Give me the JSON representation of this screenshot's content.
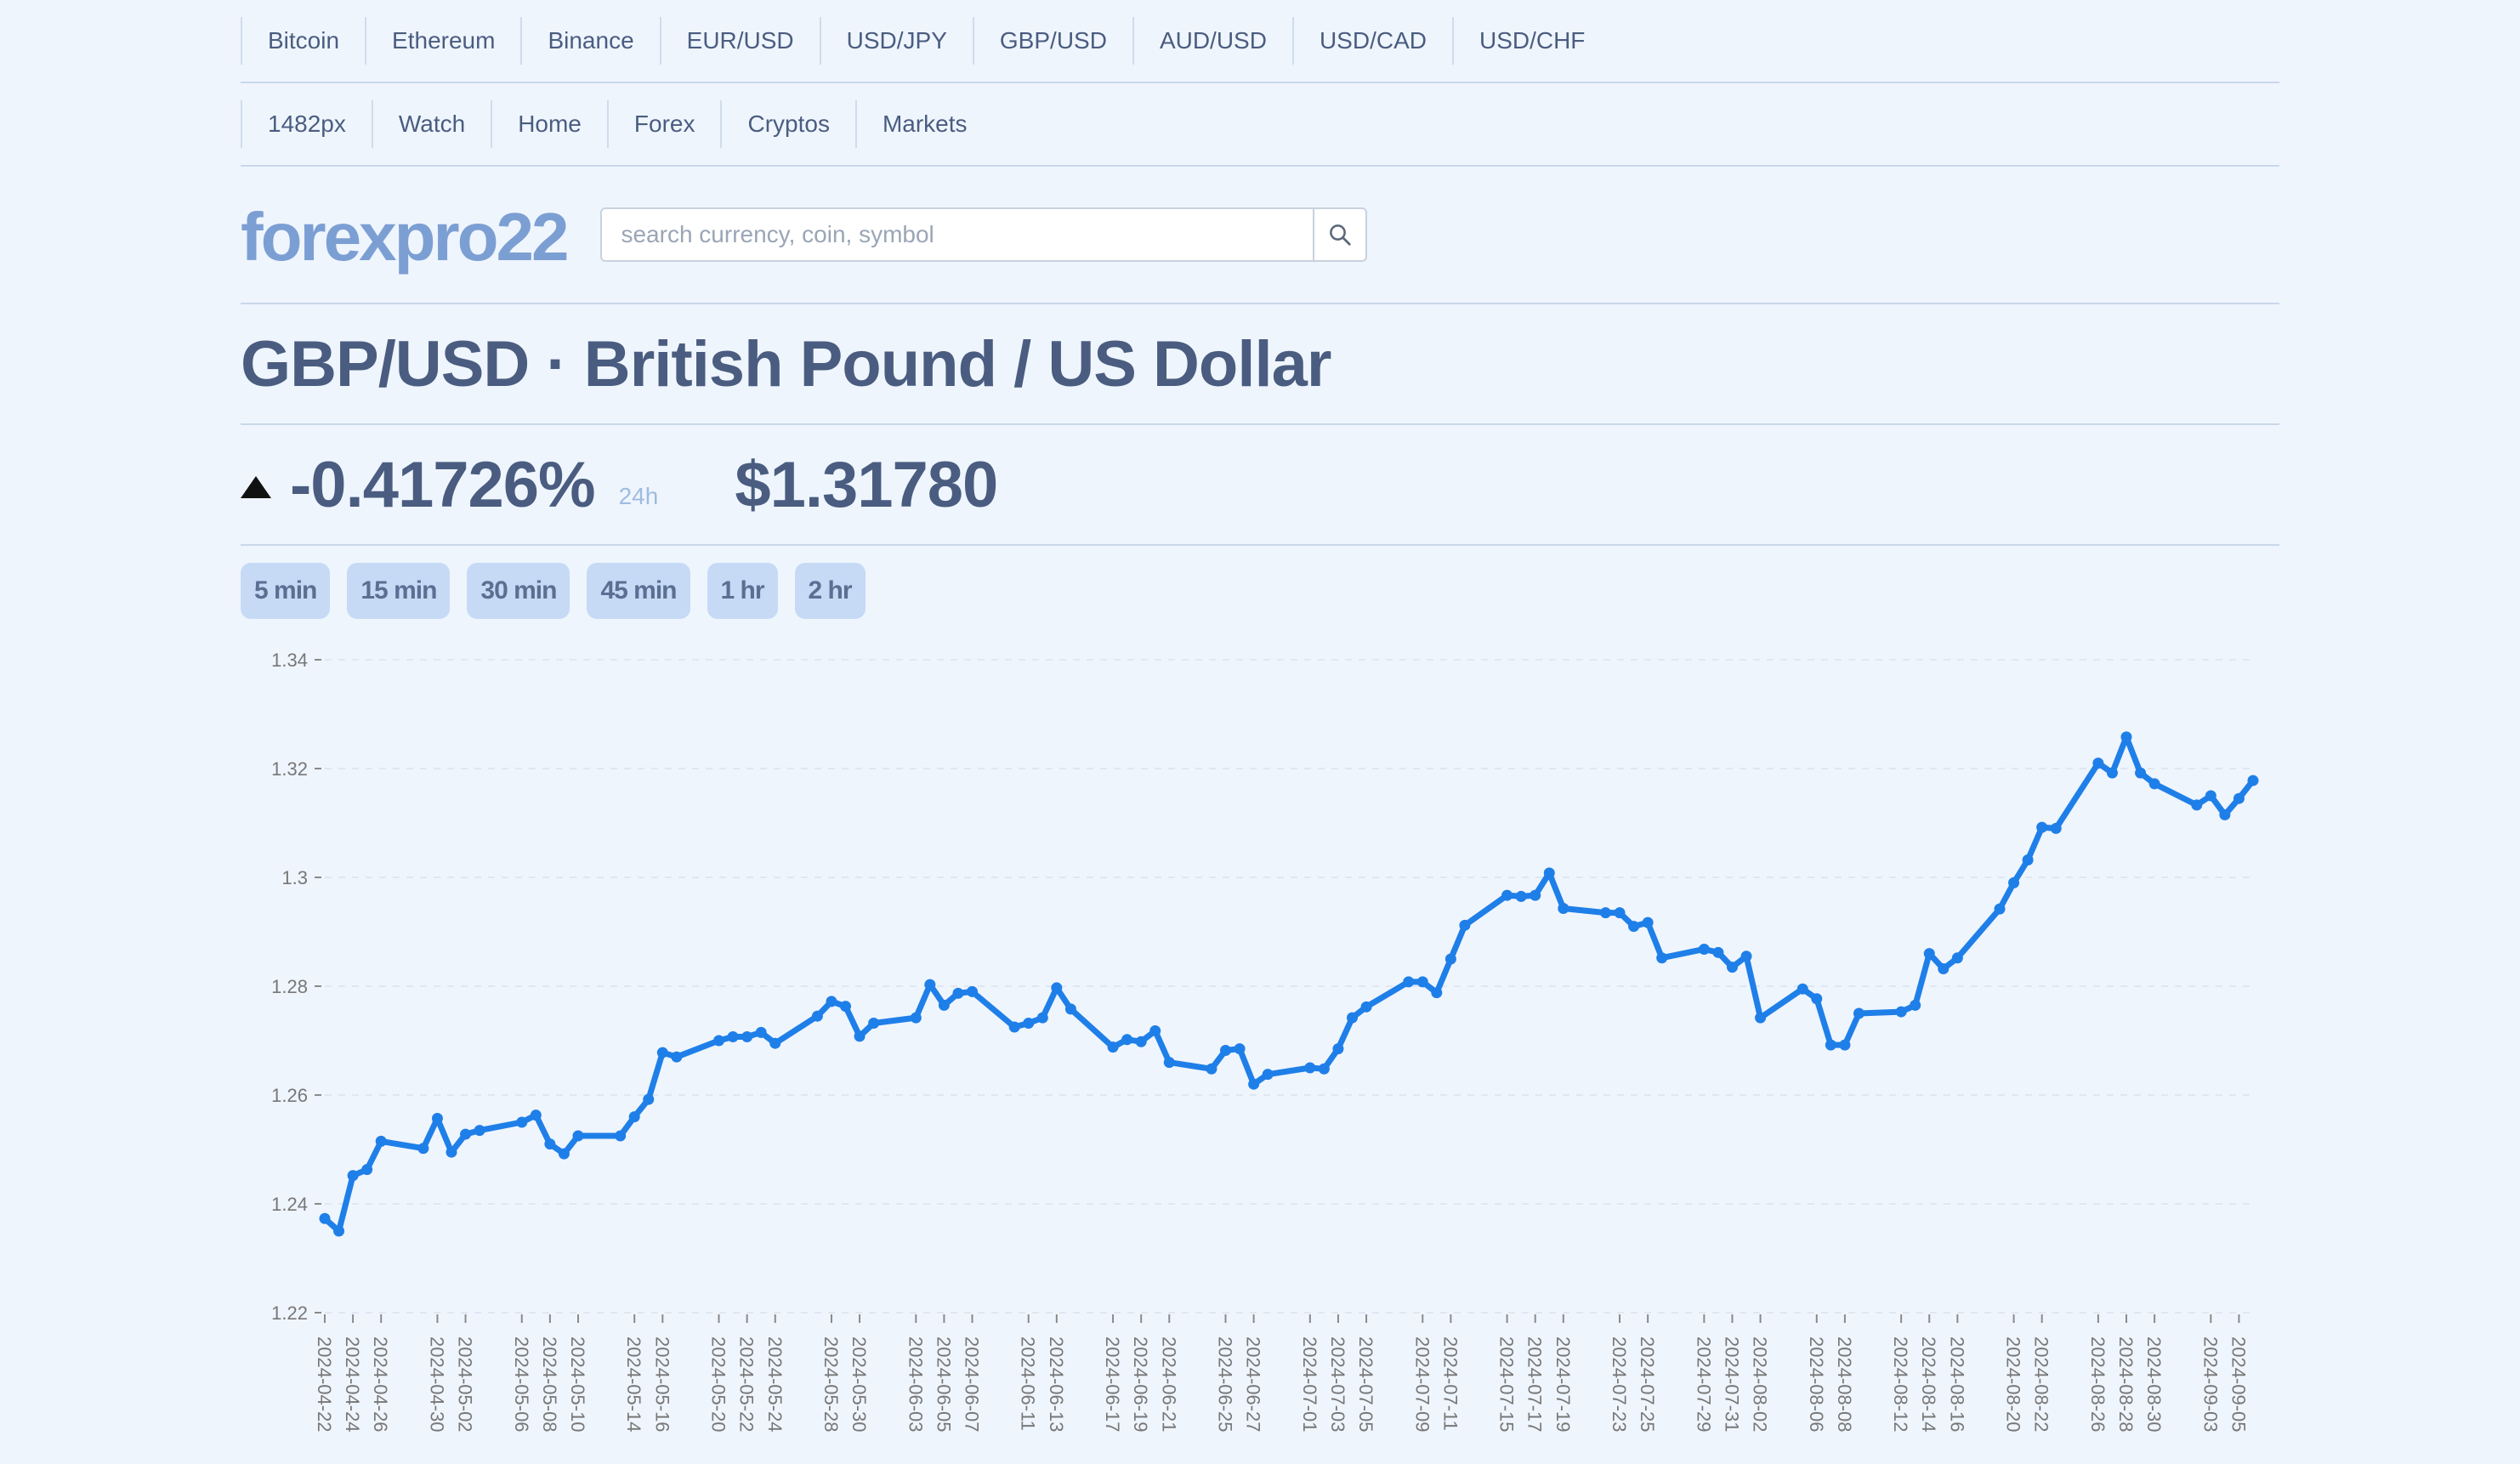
{
  "nav_top": [
    "Bitcoin",
    "Ethereum",
    "Binance",
    "EUR/USD",
    "USD/JPY",
    "GBP/USD",
    "AUD/USD",
    "USD/CAD",
    "USD/CHF"
  ],
  "nav_second": [
    "1482px",
    "Watch",
    "Home",
    "Forex",
    "Cryptos",
    "Markets"
  ],
  "logo": "forexpro22",
  "search": {
    "placeholder": "search currency, coin, symbol"
  },
  "title": "GBP/USD · British Pound / US Dollar",
  "change": "-0.41726%",
  "period": "24h",
  "price": "$1.31780",
  "intervals": [
    "5 min",
    "15 min",
    "30 min",
    "45 min",
    "1 hr",
    "2 hr"
  ],
  "colors": {
    "line": "#1f7fe8",
    "accent": "#7c9fd3",
    "button_bg": "#c6daf5"
  },
  "chart_data": {
    "type": "line",
    "x": [
      "2024-04-22",
      "2024-04-23",
      "2024-04-24",
      "2024-04-25",
      "2024-04-26",
      "2024-04-29",
      "2024-04-30",
      "2024-05-01",
      "2024-05-02",
      "2024-05-03",
      "2024-05-06",
      "2024-05-07",
      "2024-05-08",
      "2024-05-09",
      "2024-05-10",
      "2024-05-13",
      "2024-05-14",
      "2024-05-15",
      "2024-05-16",
      "2024-05-17",
      "2024-05-20",
      "2024-05-21",
      "2024-05-22",
      "2024-05-23",
      "2024-05-24",
      "2024-05-27",
      "2024-05-28",
      "2024-05-29",
      "2024-05-30",
      "2024-05-31",
      "2024-06-03",
      "2024-06-04",
      "2024-06-05",
      "2024-06-06",
      "2024-06-07",
      "2024-06-10",
      "2024-06-11",
      "2024-06-12",
      "2024-06-13",
      "2024-06-14",
      "2024-06-17",
      "2024-06-18",
      "2024-06-19",
      "2024-06-20",
      "2024-06-21",
      "2024-06-24",
      "2024-06-25",
      "2024-06-26",
      "2024-06-27",
      "2024-06-28",
      "2024-07-01",
      "2024-07-02",
      "2024-07-03",
      "2024-07-04",
      "2024-07-05",
      "2024-07-08",
      "2024-07-09",
      "2024-07-10",
      "2024-07-11",
      "2024-07-12",
      "2024-07-15",
      "2024-07-16",
      "2024-07-17",
      "2024-07-18",
      "2024-07-19",
      "2024-07-22",
      "2024-07-23",
      "2024-07-24",
      "2024-07-25",
      "2024-07-26",
      "2024-07-29",
      "2024-07-30",
      "2024-07-31",
      "2024-08-01",
      "2024-08-02",
      "2024-08-05",
      "2024-08-06",
      "2024-08-07",
      "2024-08-08",
      "2024-08-09",
      "2024-08-12",
      "2024-08-13",
      "2024-08-14",
      "2024-08-15",
      "2024-08-16",
      "2024-08-19",
      "2024-08-20",
      "2024-08-21",
      "2024-08-22",
      "2024-08-23",
      "2024-08-26",
      "2024-08-27",
      "2024-08-28",
      "2024-08-29",
      "2024-08-30",
      "2024-09-02",
      "2024-09-03",
      "2024-09-04",
      "2024-09-05",
      "2024-09-06"
    ],
    "tick_labels": [
      "2024-04-22",
      "2024-04-24",
      "2024-04-26",
      "2024-04-30",
      "2024-05-02",
      "2024-05-06",
      "2024-05-08",
      "2024-05-10",
      "2024-05-14",
      "2024-05-16",
      "2024-05-20",
      "2024-05-22",
      "2024-05-24",
      "2024-05-28",
      "2024-05-30",
      "2024-06-03",
      "2024-06-05",
      "2024-06-07",
      "2024-06-11",
      "2024-06-13",
      "2024-06-17",
      "2024-06-19",
      "2024-06-21",
      "2024-06-25",
      "2024-06-27",
      "2024-07-01",
      "2024-07-03",
      "2024-07-05",
      "2024-07-09",
      "2024-07-11",
      "2024-07-15",
      "2024-07-17",
      "2024-07-19",
      "2024-07-23",
      "2024-07-25",
      "2024-07-29",
      "2024-07-31",
      "2024-08-02",
      "2024-08-06",
      "2024-08-08",
      "2024-08-12",
      "2024-08-14",
      "2024-08-16",
      "2024-08-20",
      "2024-08-22",
      "2024-08-26",
      "2024-08-28",
      "2024-08-30",
      "2024-09-03",
      "2024-09-05"
    ],
    "series": [
      {
        "values": [
          1.2373,
          1.235,
          1.2452,
          1.2463,
          1.2515,
          1.2502,
          1.2557,
          1.2495,
          1.2528,
          1.2535,
          1.255,
          1.2563,
          1.251,
          1.2492,
          1.2525,
          1.2525,
          1.256,
          1.2592,
          1.2678,
          1.267,
          1.27,
          1.2707,
          1.2707,
          1.2715,
          1.2695,
          1.2745,
          1.2772,
          1.2763,
          1.2708,
          1.2732,
          1.2742,
          1.2803,
          1.2765,
          1.2787,
          1.279,
          1.2725,
          1.2732,
          1.2742,
          1.2797,
          1.2758,
          1.2688,
          1.2702,
          1.2698,
          1.2718,
          1.266,
          1.2648,
          1.2682,
          1.2685,
          1.262,
          1.2638,
          1.265,
          1.2648,
          1.2685,
          1.2742,
          1.2762,
          1.2808,
          1.2808,
          1.2788,
          1.285,
          1.2912,
          1.2967,
          1.2965,
          1.2967,
          1.3008,
          1.2943,
          1.2935,
          1.2935,
          1.291,
          1.2917,
          1.2852,
          1.2868,
          1.2862,
          1.2835,
          1.2855,
          1.2742,
          1.2795,
          1.2777,
          1.2692,
          1.2692,
          1.275,
          1.2753,
          1.2765,
          1.286,
          1.2832,
          1.2852,
          1.2942,
          1.299,
          1.3032,
          1.3092,
          1.309,
          1.321,
          1.3192,
          1.3258,
          1.3192,
          1.3172,
          1.3133,
          1.315,
          1.3115,
          1.3145,
          1.3178
        ]
      }
    ],
    "ylim": [
      1.22,
      1.34
    ],
    "yticks": [
      "1.22",
      "1.24",
      "1.26",
      "1.28",
      "1.3",
      "1.32",
      "1.34"
    ],
    "grid": true
  }
}
